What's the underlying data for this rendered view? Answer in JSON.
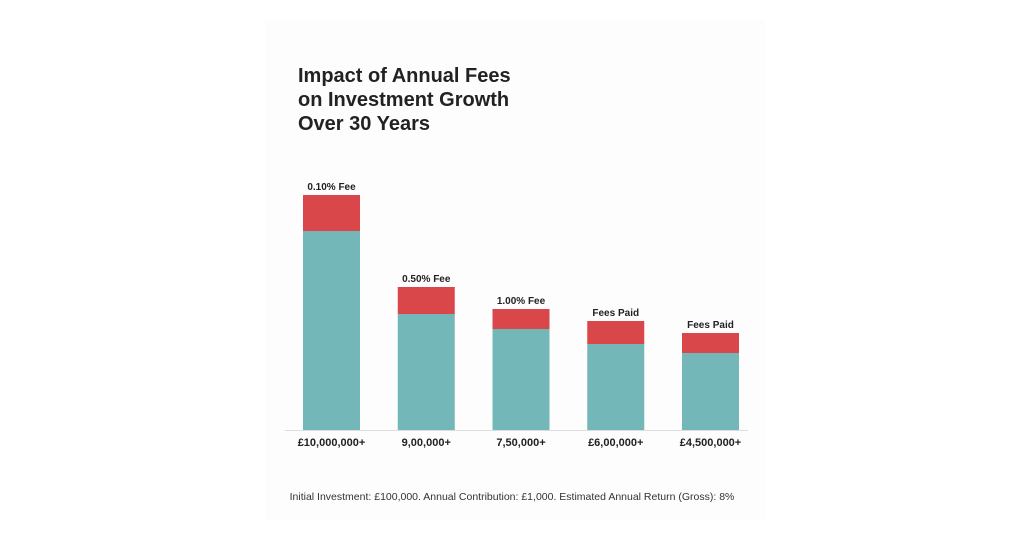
{
  "chart_data": {
    "type": "bar",
    "stacked": true,
    "title": [
      "Impact of Annual Fees",
      "on Investment Growth",
      "Over 30 Years"
    ],
    "categories": [
      "£10,000,000+",
      "9,00,000+",
      "7,50,000+",
      "£6,00,000+",
      "£4,500,000+"
    ],
    "bar_labels": [
      "0.10% Fee",
      "0.50% Fee",
      "1.00% Fee",
      "Fees Paid",
      "Fees Paid"
    ],
    "series": [
      {
        "values": [
          199,
          116,
          101,
          86,
          77
        ],
        "color": "#74b7b9"
      },
      {
        "values": [
          36,
          27,
          20,
          23,
          20
        ],
        "color": "#d9474a"
      }
    ],
    "ylim": [
      0,
      240
    ],
    "grid": false,
    "y_axis_shown": false,
    "legend": "none",
    "footnote": "Initial Investment: £100,000. Annual Contribution: £1,000. Estimated Annual Return (Gross): 8%"
  }
}
